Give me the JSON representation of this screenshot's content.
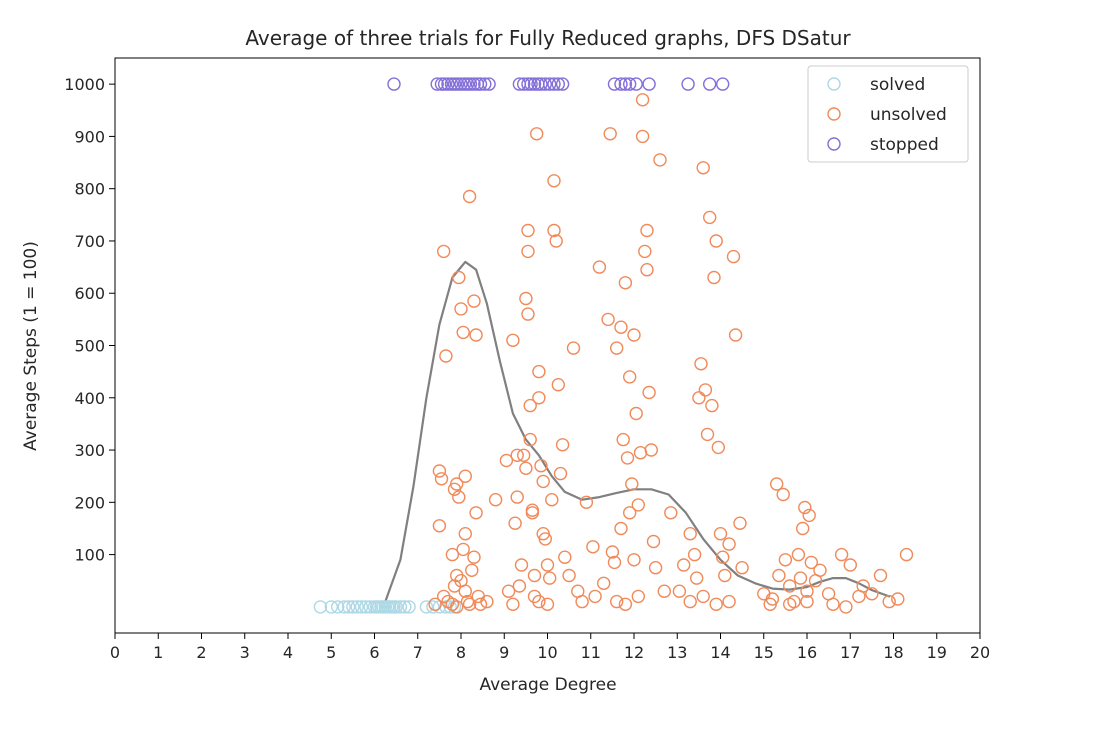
{
  "chart_data": {
    "type": "scatter",
    "title": "Average of three trials for Fully Reduced graphs, DFS DSatur",
    "xlabel": "Average Degree",
    "ylabel": "Average Steps (1 = 100)",
    "xlim": [
      0,
      20
    ],
    "ylim": [
      -50,
      1050
    ],
    "xticks": [
      "0",
      "1",
      "2",
      "3",
      "4",
      "5",
      "6",
      "7",
      "8",
      "9",
      "10",
      "11",
      "12",
      "13",
      "14",
      "15",
      "16",
      "17",
      "18",
      "19",
      "20"
    ],
    "yticks": [
      "100",
      "200",
      "300",
      "400",
      "500",
      "600",
      "700",
      "800",
      "900",
      "1000"
    ],
    "grid": false,
    "legend_position": "top-right",
    "series": [
      {
        "name": "solved",
        "color": "#add8e6",
        "marker": "open-circle",
        "points": [
          [
            4.75,
            0
          ],
          [
            5.0,
            0
          ],
          [
            5.15,
            0
          ],
          [
            5.3,
            0
          ],
          [
            5.4,
            0
          ],
          [
            5.5,
            0
          ],
          [
            5.6,
            0
          ],
          [
            5.7,
            0
          ],
          [
            5.8,
            0
          ],
          [
            5.9,
            0
          ],
          [
            6.0,
            0
          ],
          [
            6.05,
            0
          ],
          [
            6.1,
            0
          ],
          [
            6.15,
            0
          ],
          [
            6.2,
            0
          ],
          [
            6.25,
            0
          ],
          [
            6.3,
            0
          ],
          [
            6.35,
            0
          ],
          [
            6.4,
            0
          ],
          [
            6.45,
            0
          ],
          [
            6.5,
            0
          ],
          [
            6.6,
            0
          ],
          [
            6.7,
            0
          ],
          [
            6.8,
            0
          ],
          [
            7.2,
            0
          ],
          [
            7.35,
            0
          ],
          [
            7.5,
            0
          ],
          [
            7.65,
            0
          ],
          [
            7.75,
            0
          ],
          [
            7.85,
            0
          ]
        ]
      },
      {
        "name": "unsolved",
        "color": "#f08a5a",
        "marker": "open-circle",
        "points": [
          [
            7.5,
            260
          ],
          [
            7.55,
            245
          ],
          [
            7.6,
            680
          ],
          [
            7.65,
            480
          ],
          [
            7.5,
            155
          ],
          [
            7.4,
            5
          ],
          [
            7.6,
            20
          ],
          [
            7.7,
            10
          ],
          [
            7.8,
            5
          ],
          [
            7.9,
            0
          ],
          [
            7.85,
            225
          ],
          [
            7.9,
            235
          ],
          [
            7.95,
            210
          ],
          [
            7.95,
            630
          ],
          [
            8.0,
            570
          ],
          [
            8.05,
            525
          ],
          [
            8.1,
            250
          ],
          [
            8.1,
            140
          ],
          [
            8.05,
            110
          ],
          [
            7.8,
            100
          ],
          [
            7.9,
            60
          ],
          [
            7.85,
            40
          ],
          [
            8.0,
            50
          ],
          [
            8.1,
            30
          ],
          [
            8.15,
            10
          ],
          [
            8.2,
            5
          ],
          [
            8.2,
            785
          ],
          [
            8.3,
            585
          ],
          [
            8.35,
            520
          ],
          [
            8.35,
            180
          ],
          [
            8.3,
            95
          ],
          [
            8.25,
            70
          ],
          [
            8.4,
            20
          ],
          [
            8.45,
            5
          ],
          [
            8.6,
            10
          ],
          [
            8.8,
            205
          ],
          [
            9.05,
            280
          ],
          [
            9.1,
            30
          ],
          [
            9.2,
            510
          ],
          [
            9.25,
            160
          ],
          [
            9.3,
            290
          ],
          [
            9.3,
            210
          ],
          [
            9.35,
            40
          ],
          [
            9.4,
            80
          ],
          [
            9.45,
            290
          ],
          [
            9.5,
            590
          ],
          [
            9.55,
            560
          ],
          [
            9.55,
            680
          ],
          [
            9.6,
            385
          ],
          [
            9.6,
            320
          ],
          [
            9.65,
            180
          ],
          [
            9.65,
            185
          ],
          [
            9.7,
            60
          ],
          [
            9.75,
            905
          ],
          [
            9.8,
            450
          ],
          [
            9.8,
            400
          ],
          [
            9.85,
            270
          ],
          [
            9.9,
            240
          ],
          [
            9.9,
            140
          ],
          [
            9.95,
            130
          ],
          [
            10.0,
            80
          ],
          [
            10.05,
            55
          ],
          [
            10.1,
            205
          ],
          [
            10.15,
            815
          ],
          [
            10.15,
            720
          ],
          [
            10.2,
            700
          ],
          [
            10.25,
            425
          ],
          [
            10.3,
            255
          ],
          [
            10.35,
            310
          ],
          [
            10.4,
            95
          ],
          [
            10.5,
            60
          ],
          [
            10.6,
            495
          ],
          [
            10.7,
            30
          ],
          [
            10.8,
            10
          ],
          [
            10.9,
            200
          ],
          [
            9.55,
            720
          ],
          [
            9.5,
            265
          ],
          [
            9.7,
            20
          ],
          [
            9.8,
            10
          ],
          [
            10.0,
            5
          ],
          [
            9.2,
            5
          ],
          [
            11.05,
            115
          ],
          [
            11.1,
            20
          ],
          [
            11.2,
            650
          ],
          [
            11.3,
            45
          ],
          [
            11.4,
            550
          ],
          [
            11.45,
            905
          ],
          [
            11.5,
            105
          ],
          [
            11.55,
            85
          ],
          [
            11.6,
            495
          ],
          [
            11.7,
            535
          ],
          [
            11.75,
            320
          ],
          [
            11.8,
            620
          ],
          [
            11.85,
            285
          ],
          [
            11.9,
            440
          ],
          [
            11.95,
            235
          ],
          [
            12.0,
            520
          ],
          [
            12.05,
            370
          ],
          [
            12.1,
            195
          ],
          [
            12.15,
            295
          ],
          [
            12.2,
            900
          ],
          [
            12.2,
            970
          ],
          [
            12.25,
            680
          ],
          [
            12.3,
            720
          ],
          [
            12.3,
            645
          ],
          [
            12.35,
            410
          ],
          [
            12.4,
            300
          ],
          [
            12.45,
            125
          ],
          [
            12.5,
            75
          ],
          [
            12.6,
            855
          ],
          [
            12.7,
            30
          ],
          [
            12.85,
            180
          ],
          [
            11.7,
            150
          ],
          [
            11.9,
            180
          ],
          [
            12.0,
            90
          ],
          [
            11.6,
            10
          ],
          [
            11.8,
            5
          ],
          [
            12.1,
            20
          ],
          [
            13.05,
            30
          ],
          [
            13.15,
            80
          ],
          [
            13.3,
            140
          ],
          [
            13.4,
            100
          ],
          [
            13.45,
            55
          ],
          [
            13.5,
            400
          ],
          [
            13.55,
            465
          ],
          [
            13.6,
            840
          ],
          [
            13.65,
            415
          ],
          [
            13.7,
            330
          ],
          [
            13.75,
            745
          ],
          [
            13.8,
            385
          ],
          [
            13.85,
            630
          ],
          [
            13.9,
            700
          ],
          [
            13.95,
            305
          ],
          [
            14.0,
            140
          ],
          [
            14.05,
            95
          ],
          [
            14.1,
            60
          ],
          [
            14.2,
            120
          ],
          [
            14.3,
            670
          ],
          [
            14.35,
            520
          ],
          [
            14.45,
            160
          ],
          [
            14.5,
            75
          ],
          [
            13.3,
            10
          ],
          [
            13.6,
            20
          ],
          [
            13.9,
            5
          ],
          [
            14.2,
            10
          ],
          [
            15.0,
            25
          ],
          [
            15.15,
            5
          ],
          [
            15.3,
            235
          ],
          [
            15.35,
            60
          ],
          [
            15.45,
            215
          ],
          [
            15.5,
            90
          ],
          [
            15.6,
            40
          ],
          [
            15.7,
            10
          ],
          [
            15.8,
            100
          ],
          [
            15.85,
            55
          ],
          [
            15.9,
            150
          ],
          [
            15.95,
            190
          ],
          [
            16.0,
            30
          ],
          [
            16.05,
            175
          ],
          [
            16.1,
            85
          ],
          [
            16.2,
            50
          ],
          [
            16.3,
            70
          ],
          [
            16.5,
            25
          ],
          [
            16.8,
            100
          ],
          [
            16.9,
            0
          ],
          [
            17.0,
            80
          ],
          [
            17.2,
            20
          ],
          [
            17.3,
            40
          ],
          [
            17.5,
            25
          ],
          [
            17.7,
            60
          ],
          [
            17.9,
            10
          ],
          [
            18.1,
            15
          ],
          [
            18.3,
            100
          ],
          [
            15.2,
            15
          ],
          [
            15.6,
            5
          ],
          [
            16.0,
            10
          ],
          [
            16.6,
            5
          ]
        ]
      },
      {
        "name": "stopped",
        "color": "#8470d8",
        "marker": "open-circle",
        "points": [
          [
            6.45,
            1000
          ],
          [
            7.45,
            1000
          ],
          [
            7.55,
            1000
          ],
          [
            7.62,
            1000
          ],
          [
            7.7,
            1000
          ],
          [
            7.78,
            1000
          ],
          [
            7.85,
            1000
          ],
          [
            7.92,
            1000
          ],
          [
            8.0,
            1000
          ],
          [
            8.08,
            1000
          ],
          [
            8.15,
            1000
          ],
          [
            8.22,
            1000
          ],
          [
            8.3,
            1000
          ],
          [
            8.38,
            1000
          ],
          [
            8.45,
            1000
          ],
          [
            8.55,
            1000
          ],
          [
            8.65,
            1000
          ],
          [
            9.35,
            1000
          ],
          [
            9.45,
            1000
          ],
          [
            9.55,
            1000
          ],
          [
            9.62,
            1000
          ],
          [
            9.7,
            1000
          ],
          [
            9.78,
            1000
          ],
          [
            9.85,
            1000
          ],
          [
            9.95,
            1000
          ],
          [
            10.05,
            1000
          ],
          [
            10.15,
            1000
          ],
          [
            10.25,
            1000
          ],
          [
            10.35,
            1000
          ],
          [
            11.55,
            1000
          ],
          [
            11.7,
            1000
          ],
          [
            11.8,
            1000
          ],
          [
            11.9,
            1000
          ],
          [
            12.05,
            1000
          ],
          [
            12.35,
            1000
          ],
          [
            13.25,
            1000
          ],
          [
            13.75,
            1000
          ],
          [
            14.05,
            1000
          ]
        ]
      }
    ],
    "trend_line": {
      "color": "#808080",
      "points": [
        [
          6.25,
          10
        ],
        [
          6.6,
          90
        ],
        [
          6.9,
          230
        ],
        [
          7.2,
          400
        ],
        [
          7.5,
          540
        ],
        [
          7.8,
          630
        ],
        [
          8.1,
          660
        ],
        [
          8.35,
          645
        ],
        [
          8.6,
          580
        ],
        [
          8.9,
          470
        ],
        [
          9.2,
          370
        ],
        [
          9.5,
          320
        ],
        [
          9.8,
          290
        ],
        [
          10.1,
          250
        ],
        [
          10.4,
          220
        ],
        [
          10.8,
          205
        ],
        [
          11.2,
          210
        ],
        [
          11.6,
          218
        ],
        [
          12.0,
          225
        ],
        [
          12.4,
          225
        ],
        [
          12.8,
          215
        ],
        [
          13.2,
          180
        ],
        [
          13.6,
          130
        ],
        [
          14.0,
          90
        ],
        [
          14.4,
          60
        ],
        [
          14.8,
          45
        ],
        [
          15.2,
          35
        ],
        [
          15.6,
          33
        ],
        [
          16.0,
          38
        ],
        [
          16.3,
          48
        ],
        [
          16.6,
          55
        ],
        [
          16.9,
          55
        ],
        [
          17.2,
          45
        ],
        [
          17.5,
          32
        ],
        [
          17.9,
          20
        ]
      ]
    }
  }
}
